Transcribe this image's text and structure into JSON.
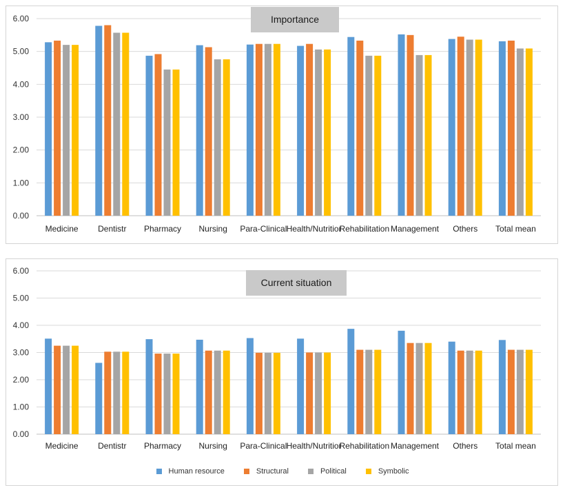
{
  "chart_data": [
    {
      "type": "bar",
      "title": "Importance",
      "categories": [
        "Medicine",
        "Dentistr",
        "Pharmacy",
        "Nursing",
        "Para-Clinical",
        "Health/Nutritior",
        "Rehabilitation",
        "Management",
        "Others",
        "Total mean"
      ],
      "ylim": [
        0,
        6
      ],
      "yticks": [
        "0.00",
        "1.00",
        "2.00",
        "3.00",
        "4.00",
        "5.00",
        "6.00"
      ],
      "grid": true,
      "series": [
        {
          "name": "Human resource",
          "color": "#5b9bd5",
          "values": [
            5.28,
            5.78,
            4.87,
            5.19,
            5.21,
            5.17,
            5.44,
            5.52,
            5.38,
            5.31
          ]
        },
        {
          "name": "Structural",
          "color": "#ed7d31",
          "values": [
            5.33,
            5.8,
            4.92,
            5.13,
            5.23,
            5.23,
            5.33,
            5.5,
            5.45,
            5.33
          ]
        },
        {
          "name": "Political",
          "color": "#a5a5a5",
          "values": [
            5.2,
            5.57,
            4.45,
            4.76,
            5.23,
            5.06,
            4.87,
            4.89,
            5.36,
            5.09
          ]
        },
        {
          "name": "Symbolic",
          "color": "#ffc000",
          "values": [
            5.2,
            5.57,
            4.45,
            4.76,
            5.23,
            5.06,
            4.87,
            4.89,
            5.36,
            5.09
          ]
        }
      ]
    },
    {
      "type": "bar",
      "title": "Current situation",
      "categories": [
        "Medicine",
        "Dentistr",
        "Pharmacy",
        "Nursing",
        "Para-Clinical",
        "Health/Nutritior",
        "Rehabilitation",
        "Management",
        "Others",
        "Total mean"
      ],
      "ylim": [
        0,
        6
      ],
      "yticks": [
        "0.00",
        "1.00",
        "2.00",
        "3.00",
        "4.00",
        "5.00",
        "6.00"
      ],
      "grid": true,
      "legend_position": "bottom",
      "series": [
        {
          "name": "Human resource",
          "color": "#5b9bd5",
          "values": [
            3.51,
            2.62,
            3.49,
            3.47,
            3.53,
            3.51,
            3.87,
            3.8,
            3.4,
            3.46
          ]
        },
        {
          "name": "Structural",
          "color": "#ed7d31",
          "values": [
            3.25,
            3.03,
            2.96,
            3.07,
            2.99,
            3.0,
            3.1,
            3.35,
            3.07,
            3.1
          ]
        },
        {
          "name": "Political",
          "color": "#a5a5a5",
          "values": [
            3.25,
            3.03,
            2.96,
            3.07,
            2.99,
            3.0,
            3.1,
            3.35,
            3.07,
            3.1
          ]
        },
        {
          "name": "Symbolic",
          "color": "#ffc000",
          "values": [
            3.25,
            3.03,
            2.96,
            3.07,
            2.99,
            3.0,
            3.1,
            3.35,
            3.07,
            3.1
          ]
        }
      ]
    }
  ],
  "legend": [
    {
      "label": "Human resource",
      "color": "#5b9bd5"
    },
    {
      "label": "Structural",
      "color": "#ed7d31"
    },
    {
      "label": "Political",
      "color": "#a5a5a5"
    },
    {
      "label": "Symbolic",
      "color": "#ffc000"
    }
  ]
}
